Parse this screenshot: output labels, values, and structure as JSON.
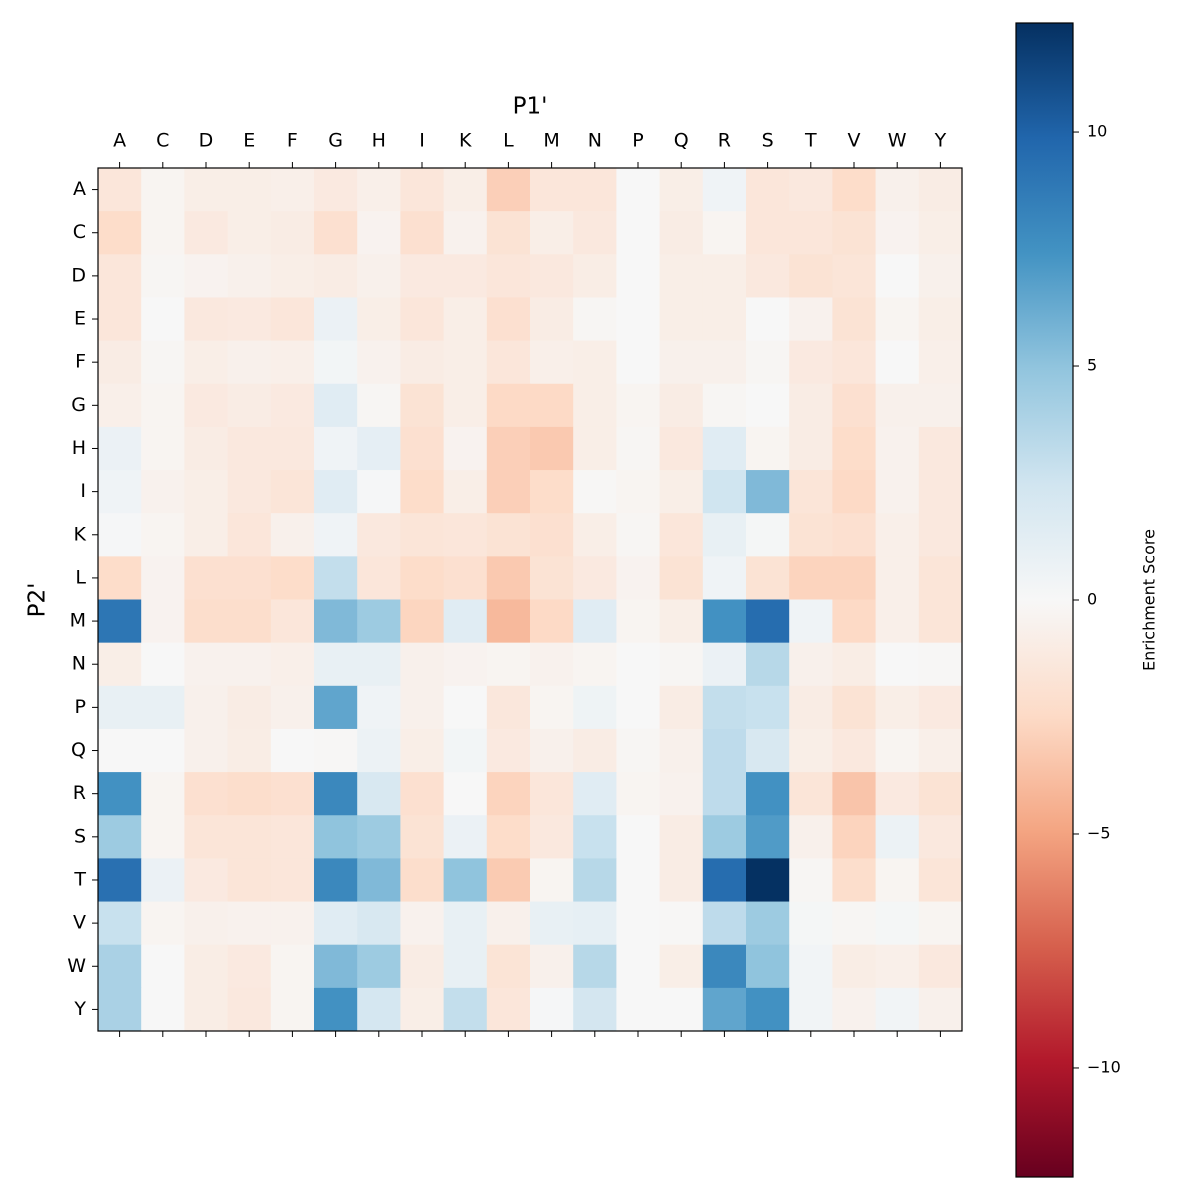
{
  "chart_data": {
    "type": "heatmap",
    "x_label": "P1'",
    "y_label": "P2'",
    "colorbar_label": "Enrichment Score",
    "x_categories": [
      "A",
      "C",
      "D",
      "E",
      "F",
      "G",
      "H",
      "I",
      "K",
      "L",
      "M",
      "N",
      "P",
      "Q",
      "R",
      "S",
      "T",
      "V",
      "W",
      "Y"
    ],
    "y_categories": [
      "A",
      "C",
      "D",
      "E",
      "F",
      "G",
      "H",
      "I",
      "K",
      "L",
      "M",
      "N",
      "P",
      "Q",
      "R",
      "S",
      "T",
      "V",
      "W",
      "Y"
    ],
    "values": [
      [
        -1.5,
        -0.3,
        -0.8,
        -0.8,
        -0.7,
        -1.2,
        -0.7,
        -1.5,
        -0.8,
        -3,
        -1.5,
        -1.5,
        0,
        -0.8,
        0.5,
        -1.5,
        -1.3,
        -2.3,
        -0.6,
        -1.0
      ],
      [
        -2.3,
        -0.3,
        -1.2,
        -0.8,
        -1.0,
        -2,
        -0.4,
        -2,
        -0.5,
        -1.8,
        -0.8,
        -1.3,
        0,
        -1.0,
        -0.3,
        -1.5,
        -1.5,
        -1.8,
        -0.4,
        -0.8
      ],
      [
        -1.5,
        -0.2,
        -0.4,
        -0.6,
        -0.8,
        -1.0,
        -0.6,
        -1.2,
        -1.2,
        -1.5,
        -1.3,
        -0.9,
        0,
        -0.8,
        -0.8,
        -1.3,
        -1.8,
        -1.6,
        0,
        -0.6
      ],
      [
        -1.5,
        0,
        -1.3,
        -1.2,
        -1.5,
        0.8,
        -0.8,
        -1.5,
        -0.8,
        -2,
        -1.0,
        -0.2,
        0,
        -0.8,
        -0.8,
        0,
        -0.5,
        -1.8,
        -0.3,
        -0.8
      ],
      [
        -1,
        -0.2,
        -0.8,
        -0.6,
        -0.7,
        0.3,
        -0.5,
        -1.0,
        -0.8,
        -1.5,
        -0.7,
        -0.8,
        0,
        -0.6,
        -0.6,
        -0.2,
        -1.2,
        -1.5,
        0,
        -0.7
      ],
      [
        -0.7,
        -0.3,
        -1.2,
        -1.0,
        -1.2,
        1.5,
        -0.2,
        -1.8,
        -0.8,
        -2.5,
        -2.5,
        -0.8,
        -0.3,
        -1.0,
        -0.2,
        0,
        -1.0,
        -2.0,
        -0.6,
        -0.6
      ],
      [
        0.8,
        -0.3,
        -1.0,
        -1.3,
        -1.3,
        0.5,
        1.2,
        -2,
        -0.4,
        -3,
        -3.3,
        -0.8,
        -0.2,
        -1.3,
        1.5,
        -0.3,
        -1.0,
        -2.3,
        -0.5,
        -1.3
      ],
      [
        0.5,
        -0.5,
        -0.8,
        -1.3,
        -1.6,
        1.5,
        0.1,
        -2.3,
        -0.8,
        -3,
        -2.3,
        -0.1,
        -0.3,
        -0.8,
        2.5,
        5.5,
        -1.6,
        -2.5,
        -0.5,
        -1.3
      ],
      [
        0.1,
        -0.3,
        -0.8,
        -1.5,
        -0.6,
        0.5,
        -1.3,
        -1.6,
        -1.5,
        -1.8,
        -2,
        -0.8,
        -0.2,
        -1.5,
        1.0,
        0.2,
        -1.8,
        -2.0,
        -0.7,
        -1.3
      ],
      [
        -2.3,
        -0.4,
        -2,
        -2,
        -2.3,
        3,
        -1.5,
        -2.3,
        -2,
        -3.3,
        -1.8,
        -1.2,
        -0.4,
        -1.8,
        0.5,
        -1.8,
        -2.8,
        -2.8,
        -0.7,
        -1.6
      ],
      [
        9,
        -0.4,
        -2.2,
        -2.2,
        -1.5,
        5.5,
        4.5,
        -2.7,
        1.5,
        -4,
        -2.5,
        1.5,
        -0.3,
        -0.8,
        7.5,
        9.5,
        0.5,
        -2.5,
        -0.7,
        -1.6
      ],
      [
        -0.8,
        0,
        -0.5,
        -0.5,
        -0.7,
        1.0,
        1.0,
        -0.6,
        -0.4,
        -0.3,
        -0.5,
        -0.3,
        0,
        -0.2,
        0.8,
        3.5,
        -0.6,
        -0.9,
        0,
        -0.1
      ],
      [
        1.0,
        1.0,
        -0.6,
        -1.0,
        -0.6,
        6.5,
        0.5,
        -0.6,
        0,
        -1.4,
        -0.3,
        0.6,
        0,
        -1.0,
        3.0,
        2.8,
        -1.0,
        -1.8,
        -0.8,
        -1.2
      ],
      [
        0,
        0,
        -0.6,
        -0.9,
        0,
        -0.1,
        0.7,
        -0.8,
        0.3,
        -1.2,
        -0.6,
        -1.0,
        -0.2,
        -0.6,
        3.2,
        2.0,
        -0.8,
        -1.3,
        -0.3,
        -0.7
      ],
      [
        7.5,
        -0.3,
        -2,
        -2.2,
        -2,
        8,
        2,
        -2,
        0,
        -2.8,
        -1.5,
        1.5,
        -0.3,
        -0.5,
        3.2,
        7.5,
        -1.6,
        -3.5,
        -1.2,
        -1.8
      ],
      [
        4.5,
        -0.3,
        -1.6,
        -1.6,
        -1.5,
        5,
        4.5,
        -1.8,
        0.8,
        -2.3,
        -1.3,
        2.8,
        0,
        -1.0,
        4.5,
        7,
        -0.6,
        -2.8,
        0.7,
        -1.3
      ],
      [
        9.3,
        0.8,
        -1.2,
        -1.6,
        -1.5,
        8,
        5.5,
        -2.2,
        5,
        -3.2,
        -0.3,
        3.5,
        0,
        -1.0,
        9.5,
        12.3,
        -0.2,
        -2.2,
        -0.3,
        -1.6
      ],
      [
        2.8,
        -0.3,
        -0.6,
        -0.5,
        -0.5,
        1.5,
        2,
        -0.5,
        1,
        -0.6,
        1,
        1.1,
        0,
        -0.1,
        3.2,
        4.5,
        0.2,
        -0.2,
        0.2,
        -0.3
      ],
      [
        4,
        0,
        -0.9,
        -1.2,
        -0.3,
        5.5,
        4.5,
        -1.0,
        1.0,
        -1.7,
        -0.6,
        3.5,
        0,
        -0.8,
        8,
        5,
        0.4,
        -0.9,
        -0.7,
        -1.3
      ],
      [
        4,
        0,
        -0.9,
        -1.3,
        -0.3,
        7.5,
        2.2,
        -0.8,
        3,
        -1.5,
        0.1,
        2.3,
        0,
        0,
        6.5,
        7.5,
        0.4,
        -0.5,
        0.4,
        -0.6
      ]
    ],
    "clim": [
      -12.33,
      12.33
    ],
    "cticks": [
      {
        "value": -10,
        "label": "−10"
      },
      {
        "value": -5,
        "label": "−5"
      },
      0,
      5,
      10
    ],
    "colormap": [
      "#67001f",
      "#b2182b",
      "#d6604d",
      "#f4a582",
      "#fddbc7",
      "#f7f7f7",
      "#d1e5f0",
      "#92c5de",
      "#4393c3",
      "#2166ac",
      "#053061"
    ]
  }
}
